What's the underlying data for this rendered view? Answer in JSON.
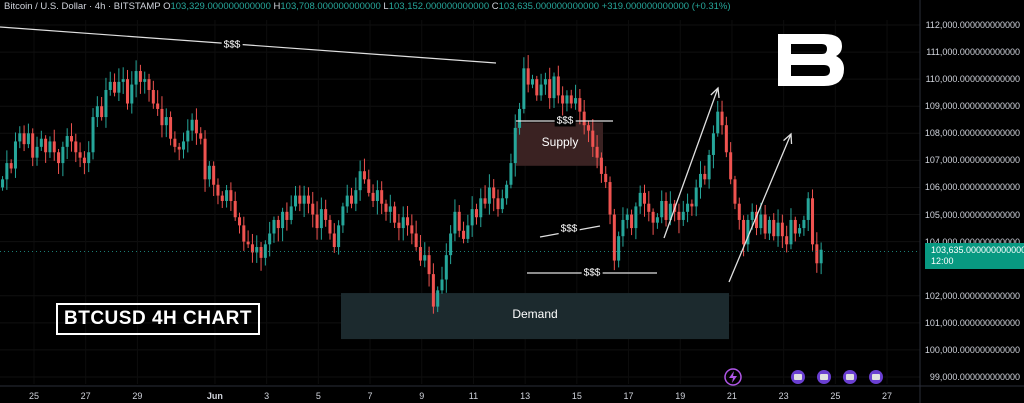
{
  "header": {
    "symbol": "Bitcoin / U.S. Dollar · 4h · BITSTAMP",
    "open_label": "O",
    "open": "103,329.000000000000",
    "high_label": "H",
    "high": "103,708.000000000000",
    "low_label": "L",
    "low": "103,152.000000000000",
    "close_label": "C",
    "close": "103,635.000000000000",
    "change": "+319.000000000000 (+0.31%)"
  },
  "title_badge": "BTCUSD 4H CHART",
  "annotations": {
    "supply_label": "Supply",
    "demand_label": "Demand",
    "liquidity_label": "$$$"
  },
  "price_tag": {
    "price": "103,635.000000000000",
    "countdown": "12:00"
  },
  "colors": {
    "up": "#26a69a",
    "down": "#ef5350",
    "supply_zone": "#3a2222",
    "demand_zone": "#1c2a2e",
    "price_tag_bg": "#089981"
  },
  "icons": [
    "brand-logo-icon",
    "economic-event-icon",
    "flag-icon"
  ],
  "chart_data": {
    "type": "candlestick",
    "symbol": "BTCUSD",
    "timeframe": "4h",
    "ylim": [
      98800,
      112300
    ],
    "y_ticks": [
      {
        "value": 112000,
        "label": "112,000.000000000000"
      },
      {
        "value": 111000,
        "label": "111,000.000000000000"
      },
      {
        "value": 110000,
        "label": "110,000.000000000000"
      },
      {
        "value": 109000,
        "label": "109,000.000000000000"
      },
      {
        "value": 108000,
        "label": "108,000.000000000000"
      },
      {
        "value": 107000,
        "label": "107,000.000000000000"
      },
      {
        "value": 106000,
        "label": "106,000.000000000000"
      },
      {
        "value": 105000,
        "label": "105,000.000000000000"
      },
      {
        "value": 104000,
        "label": "104,000.000000000000"
      },
      {
        "value": 102000,
        "label": "102,000.000000000000"
      },
      {
        "value": 101000,
        "label": "101,000.000000000000"
      },
      {
        "value": 100000,
        "label": "100,000.000000000000"
      },
      {
        "value": 99000,
        "label": "99,000.000000000000"
      }
    ],
    "x_ticks": [
      {
        "day": 25,
        "label": "25"
      },
      {
        "day": 27,
        "label": "27"
      },
      {
        "day": 29,
        "label": "29"
      },
      {
        "day": 32,
        "label": "Jun",
        "bold": true
      },
      {
        "day": 34,
        "label": "3"
      },
      {
        "day": 36,
        "label": "5"
      },
      {
        "day": 38,
        "label": "7"
      },
      {
        "day": 40,
        "label": "9"
      },
      {
        "day": 42,
        "label": "11"
      },
      {
        "day": 44,
        "label": "13"
      },
      {
        "day": 46,
        "label": "15"
      },
      {
        "day": 48,
        "label": "17"
      },
      {
        "day": 50,
        "label": "19"
      },
      {
        "day": 52,
        "label": "21"
      },
      {
        "day": 54,
        "label": "23"
      },
      {
        "day": 56,
        "label": "25"
      },
      {
        "day": 58,
        "label": "27"
      }
    ],
    "x_start_day": 23.7,
    "bars_per_day": 6,
    "closes": [
      106300,
      106900,
      106700,
      107700,
      108000,
      107600,
      108000,
      107100,
      107500,
      107800,
      107300,
      107700,
      107300,
      106900,
      107500,
      107900,
      107700,
      107300,
      107100,
      106900,
      107300,
      108600,
      109000,
      108600,
      109600,
      109900,
      109500,
      109900,
      110000,
      109100,
      109800,
      110300,
      109900,
      110000,
      109600,
      109100,
      108900,
      108300,
      108600,
      107800,
      107500,
      107400,
      107700,
      108100,
      108500,
      108000,
      107800,
      106300,
      106800,
      106100,
      105700,
      105500,
      105900,
      105500,
      104900,
      104600,
      104000,
      103900,
      103600,
      103800,
      103400,
      103900,
      104300,
      104800,
      104500,
      105100,
      104800,
      105300,
      105700,
      105400,
      105700,
      105400,
      105000,
      104500,
      105200,
      104800,
      104300,
      103800,
      104600,
      105300,
      105700,
      105400,
      105900,
      106600,
      106300,
      105800,
      105500,
      105900,
      105400,
      105100,
      105300,
      104700,
      104500,
      104900,
      104600,
      104300,
      103800,
      103300,
      103500,
      102800,
      101600,
      102200,
      102600,
      103500,
      104300,
      105100,
      104400,
      104100,
      104600,
      105200,
      104900,
      105600,
      105400,
      106000,
      105600,
      105200,
      105600,
      106100,
      106900,
      108200,
      108900,
      110400,
      109800,
      110000,
      109400,
      109800,
      110000,
      109300,
      110100,
      109400,
      109100,
      109400,
      109100,
      109300,
      108800,
      108300,
      108100,
      107500,
      107100,
      106500,
      106200,
      105000,
      103300,
      104200,
      104800,
      105000,
      104500,
      105300,
      105800,
      105400,
      105100,
      104700,
      104900,
      105500,
      104800,
      105400,
      105100,
      104800,
      105100,
      105400,
      105300,
      106000,
      106500,
      106300,
      107200,
      108000,
      108800,
      108300,
      107300,
      106300,
      105400,
      104800,
      103900,
      104800,
      105100,
      104500,
      105000,
      104300,
      104800,
      104200,
      104700,
      104200,
      103900,
      104800,
      104300,
      104500,
      104800,
      105600,
      103900,
      103200,
      103700
    ],
    "last_close": 103635
  }
}
